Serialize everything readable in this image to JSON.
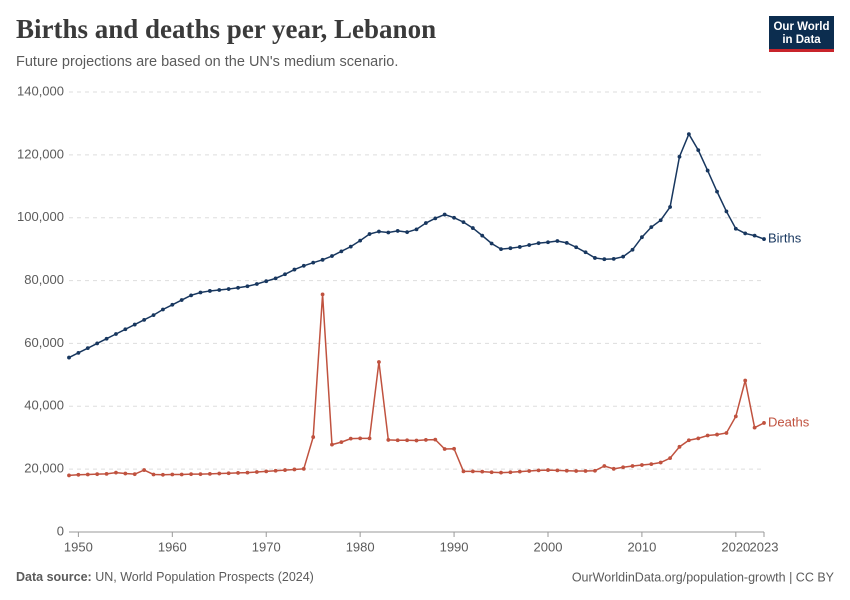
{
  "chart_data": {
    "type": "line",
    "title": "Births and deaths per year, Lebanon",
    "subtitle": "Future projections are based on the UN's medium scenario.",
    "source_label": "Data source:",
    "source": "UN, World Population Prospects (2024)",
    "url": "OurWorldinData.org/population-growth | CC BY",
    "logo": [
      "Our World",
      "in Data"
    ],
    "x": [
      1949,
      1950,
      1951,
      1952,
      1953,
      1954,
      1955,
      1956,
      1957,
      1958,
      1959,
      1960,
      1961,
      1962,
      1963,
      1964,
      1965,
      1966,
      1967,
      1968,
      1969,
      1970,
      1971,
      1972,
      1973,
      1974,
      1975,
      1976,
      1977,
      1978,
      1979,
      1980,
      1981,
      1982,
      1983,
      1984,
      1985,
      1986,
      1987,
      1988,
      1989,
      1990,
      1991,
      1992,
      1993,
      1994,
      1995,
      1996,
      1997,
      1998,
      1999,
      2000,
      2001,
      2002,
      2003,
      2004,
      2005,
      2006,
      2007,
      2008,
      2009,
      2010,
      2011,
      2012,
      2013,
      2014,
      2015,
      2016,
      2017,
      2018,
      2019,
      2020,
      2021,
      2022,
      2023
    ],
    "series": [
      {
        "name": "Births",
        "color": "#18375f",
        "values": [
          55500,
          57000,
          58500,
          60000,
          61500,
          63000,
          64500,
          66000,
          67500,
          69000,
          70800,
          72300,
          73800,
          75300,
          76200,
          76700,
          77000,
          77300,
          77700,
          78200,
          78900,
          79800,
          80700,
          82000,
          83500,
          84700,
          85700,
          86600,
          87800,
          89300,
          90800,
          92700,
          94800,
          95600,
          95300,
          95800,
          95400,
          96300,
          98300,
          99800,
          101000,
          100000,
          98600,
          96700,
          94300,
          91800,
          90000,
          90300,
          90700,
          91300,
          91900,
          92200,
          92600,
          92000,
          90600,
          89000,
          87200,
          86800,
          86900,
          87600,
          89800,
          93800,
          97000,
          99200,
          103400,
          119400,
          126600,
          121500,
          115000,
          108300,
          102000,
          96500,
          95000,
          94300,
          93200
        ]
      },
      {
        "name": "Deaths",
        "color": "#c0523f",
        "values": [
          18000,
          18200,
          18300,
          18400,
          18500,
          18900,
          18600,
          18400,
          19700,
          18300,
          18200,
          18300,
          18300,
          18400,
          18400,
          18500,
          18600,
          18700,
          18800,
          18900,
          19100,
          19300,
          19500,
          19700,
          19900,
          20100,
          30200,
          75600,
          27800,
          28600,
          29700,
          29800,
          29800,
          54100,
          29300,
          29200,
          29200,
          29100,
          29300,
          29400,
          26400,
          26500,
          19300,
          19300,
          19200,
          19000,
          18900,
          19000,
          19200,
          19400,
          19600,
          19700,
          19600,
          19500,
          19400,
          19400,
          19500,
          21000,
          20100,
          20600,
          21000,
          21300,
          21600,
          22100,
          23500,
          27100,
          29200,
          29800,
          30700,
          31000,
          31500,
          36800,
          48200,
          33200,
          34700
        ]
      }
    ],
    "xlim": [
      1949,
      2023
    ],
    "xticks": [
      1950,
      1960,
      1970,
      1980,
      1990,
      2000,
      2010,
      2020,
      2023
    ],
    "ylim": [
      0,
      140000
    ],
    "yticks": [
      0,
      {
        "value": 20000,
        "label": "20,000"
      },
      {
        "value": 40000,
        "label": "40,000"
      },
      {
        "value": 60000,
        "label": "60,000"
      },
      {
        "value": 80000,
        "label": "80,000"
      },
      {
        "value": 100000,
        "label": "100,000"
      },
      {
        "value": 120000,
        "label": "120,000"
      },
      {
        "value": 140000,
        "label": "140,000"
      }
    ],
    "grid": true
  }
}
